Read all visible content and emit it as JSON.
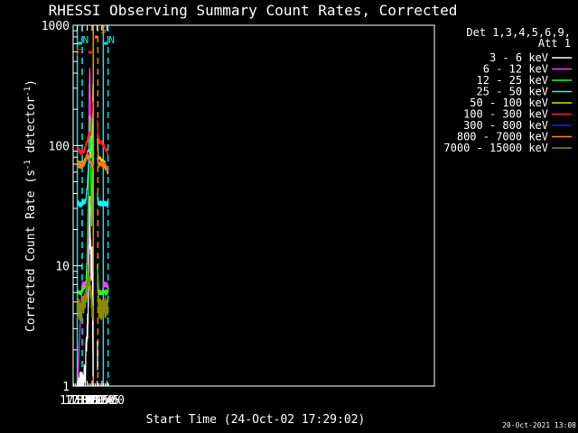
{
  "chart_data": {
    "type": "line",
    "title": "RHESSI Observing Summary Count Rates, Corrected",
    "xlabel": "Start Time (24-Oct-02 17:29:02)",
    "ylabel": "Corrected Count Rate (s",
    "ylabel_sup1": "-1",
    "ylabel_mid": " detector",
    "ylabel_sup2": "-1",
    "ylabel_end": ")",
    "yscale": "log",
    "ylim": [
      1,
      1000
    ],
    "xlim_minutes": [
      17.5,
      1115
    ],
    "x_ticks": [
      {
        "label": "17:30",
        "min": 30
      },
      {
        "label": "17:45",
        "min": 45
      },
      {
        "label": "18:00",
        "min": 60
      },
      {
        "label": "18:15",
        "min": 75
      },
      {
        "label": "18:30",
        "min": 90
      },
      {
        "label": "18:45",
        "min": 105
      },
      {
        "label": "19:00",
        "min": 120
      }
    ],
    "y_ticks": [
      {
        "label": "1",
        "value": 1
      },
      {
        "label": "10",
        "value": 10
      },
      {
        "label": "100",
        "value": 100
      },
      {
        "label": "1000",
        "value": 1000
      }
    ],
    "legend_header": [
      "Det 1,3,4,5,6,9,",
      "Att 1"
    ],
    "footer_timestamp": "20-Oct-2021 13:08",
    "flags": [
      {
        "label": "N",
        "color": "#00e5e5",
        "start": 30,
        "end": 45
      },
      {
        "label": "N",
        "color": "#00e5e5",
        "start": 109,
        "end": 123.5
      },
      {
        "label": "F",
        "color": "#ff2020",
        "start": 64,
        "end": 75
      },
      {
        "label": "S",
        "color": "#ff8000",
        "start": 83.5,
        "end": 92.5
      }
    ],
    "markers": [
      {
        "color": "#00e5e5",
        "min": 30,
        "style": "solid"
      },
      {
        "color": "#00e5e5",
        "min": 45,
        "style": "dashed"
      },
      {
        "color": "#00e5e5",
        "min": 109,
        "style": "solid"
      },
      {
        "color": "#00e5e5",
        "min": 123.5,
        "style": "dashed"
      },
      {
        "color": "#ff8000",
        "min": 78.5,
        "style": "solid"
      },
      {
        "color": "#ff8000",
        "min": 92.5,
        "style": "dashed"
      }
    ],
    "gap": {
      "start": 79,
      "end": 91
    },
    "series": [
      {
        "name": "3 - 6 keV",
        "color": "#ffffff",
        "points": [
          [
            30,
            1
          ],
          [
            45,
            1
          ],
          [
            55,
            1.3
          ],
          [
            58,
            2.5
          ],
          [
            61,
            3
          ],
          [
            64,
            5
          ],
          [
            66,
            14
          ],
          [
            68,
            32
          ],
          [
            70,
            20
          ],
          [
            72,
            9
          ],
          [
            74,
            14
          ],
          [
            76,
            10
          ],
          [
            78,
            1.2
          ]
        ],
        "post": [
          [
            91,
            3
          ],
          [
            92,
            1
          ]
        ]
      },
      {
        "name": "6 - 12 keV",
        "color": "#ff40ff",
        "points": [
          [
            30,
            1
          ],
          [
            45,
            7
          ],
          [
            55,
            7
          ],
          [
            59,
            8
          ],
          [
            62,
            14
          ],
          [
            64,
            60
          ],
          [
            66,
            250
          ],
          [
            68,
            470
          ],
          [
            70,
            200
          ],
          [
            72,
            90
          ],
          [
            74,
            110
          ],
          [
            76,
            180
          ],
          [
            78,
            200
          ]
        ],
        "post": [
          [
            91,
            7
          ],
          [
            95,
            6
          ],
          [
            105,
            6
          ],
          [
            110,
            7
          ],
          [
            115,
            7
          ],
          [
            123.5,
            7
          ]
        ]
      },
      {
        "name": "12 - 25 keV",
        "color": "#20ff20",
        "points": [
          [
            30,
            6
          ],
          [
            40,
            6
          ],
          [
            50,
            6.5
          ],
          [
            56,
            7
          ],
          [
            60,
            12
          ],
          [
            63,
            30
          ],
          [
            66,
            100
          ],
          [
            68,
            180
          ],
          [
            70,
            120
          ],
          [
            72,
            40
          ],
          [
            74,
            20
          ],
          [
            76,
            90
          ],
          [
            78,
            120
          ]
        ],
        "post": [
          [
            91,
            10
          ],
          [
            95,
            6
          ],
          [
            105,
            6
          ],
          [
            115,
            6
          ],
          [
            123.5,
            6
          ]
        ]
      },
      {
        "name": "25 - 50 keV",
        "color": "#00ffff",
        "points": [
          [
            30,
            34
          ],
          [
            40,
            32
          ],
          [
            50,
            34
          ],
          [
            56,
            35
          ],
          [
            60,
            45
          ],
          [
            64,
            70
          ],
          [
            68,
            85
          ],
          [
            72,
            100
          ],
          [
            76,
            130
          ],
          [
            78,
            160
          ]
        ],
        "post": [
          [
            91,
            38
          ],
          [
            95,
            33
          ],
          [
            105,
            33
          ],
          [
            115,
            33
          ],
          [
            123.5,
            32
          ]
        ]
      },
      {
        "name": "50 - 100 keV",
        "color": "#f0d000",
        "points": [
          [
            30,
            72
          ],
          [
            40,
            70
          ],
          [
            50,
            72
          ],
          [
            58,
            80
          ],
          [
            64,
            90
          ],
          [
            68,
            85
          ],
          [
            72,
            80
          ],
          [
            76,
            160
          ],
          [
            78,
            340
          ]
        ],
        "post": [
          [
            91,
            120
          ],
          [
            95,
            78
          ],
          [
            105,
            75
          ],
          [
            115,
            70
          ],
          [
            123.5,
            60
          ]
        ]
      },
      {
        "name": "100 - 300 keV",
        "color": "#ff2020",
        "points": [
          [
            30,
            95
          ],
          [
            40,
            88
          ],
          [
            50,
            90
          ],
          [
            58,
            105
          ],
          [
            64,
            120
          ],
          [
            68,
            125
          ],
          [
            72,
            130
          ],
          [
            76,
            200
          ],
          [
            78,
            230
          ]
        ],
        "post": [
          [
            91,
            160
          ],
          [
            95,
            110
          ],
          [
            105,
            105
          ],
          [
            115,
            95
          ],
          [
            123.5,
            85
          ]
        ]
      },
      {
        "name": "300 - 800 keV",
        "color": "#2020ff",
        "points": [
          [
            30,
            70
          ],
          [
            40,
            68
          ],
          [
            50,
            70
          ],
          [
            58,
            78
          ],
          [
            64,
            85
          ],
          [
            68,
            75
          ],
          [
            72,
            72
          ],
          [
            76,
            68
          ],
          [
            78,
            65
          ]
        ],
        "post": [
          [
            91,
            80
          ],
          [
            95,
            72
          ],
          [
            105,
            70
          ],
          [
            115,
            68
          ],
          [
            123.5,
            62
          ]
        ]
      },
      {
        "name": "800 - 7000 keV",
        "color": "#ff8000",
        "points": [
          [
            30,
            70
          ],
          [
            40,
            67
          ],
          [
            50,
            70
          ],
          [
            58,
            78
          ],
          [
            64,
            82
          ],
          [
            68,
            75
          ],
          [
            72,
            70
          ],
          [
            76,
            67
          ],
          [
            78,
            64
          ]
        ],
        "post": [
          [
            91,
            78
          ],
          [
            95,
            70
          ],
          [
            105,
            70
          ],
          [
            115,
            67
          ],
          [
            123.5,
            62
          ]
        ]
      },
      {
        "name": "7000 - 15000 keV",
        "color": "#8b8b00",
        "points": [
          [
            30,
            4.5
          ],
          [
            40,
            4.2
          ],
          [
            50,
            5
          ],
          [
            56,
            5.5
          ],
          [
            60,
            6.5
          ],
          [
            64,
            7.5
          ],
          [
            68,
            7
          ],
          [
            72,
            6
          ],
          [
            76,
            4
          ],
          [
            78,
            4
          ]
        ],
        "post": [
          [
            91,
            8
          ],
          [
            95,
            4.5
          ],
          [
            105,
            4.3
          ],
          [
            115,
            4.5
          ],
          [
            123.5,
            4.5
          ]
        ]
      }
    ]
  }
}
